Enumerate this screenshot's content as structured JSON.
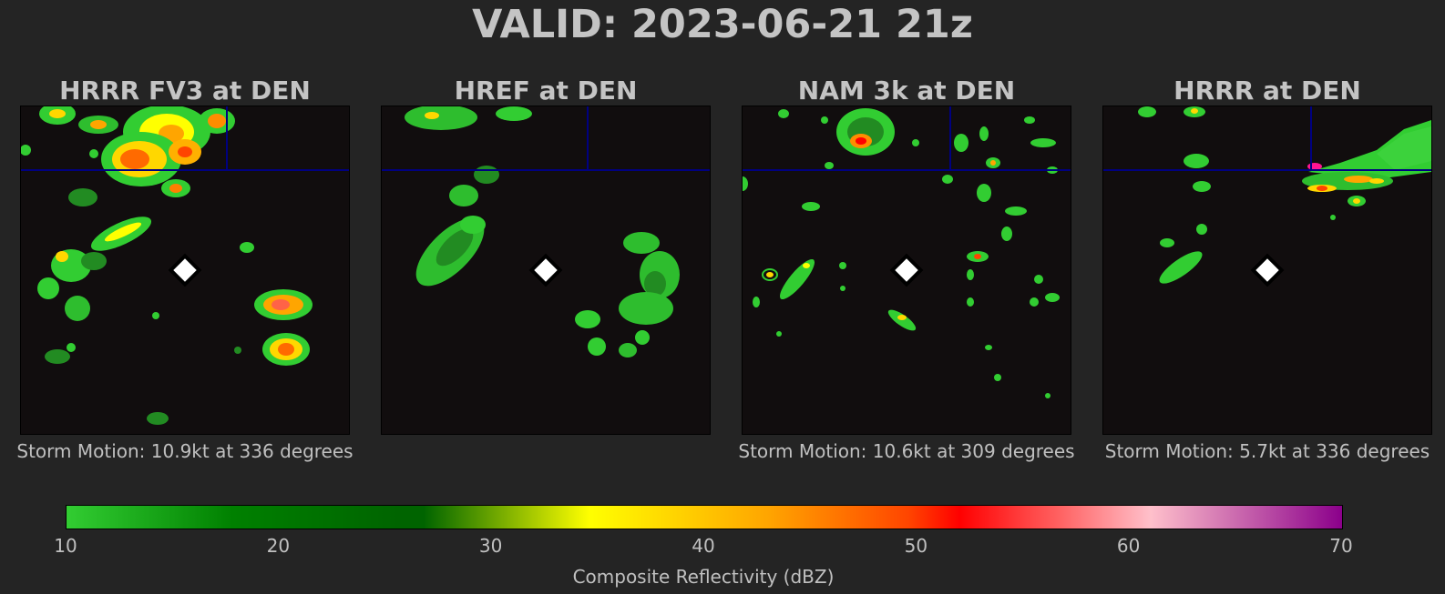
{
  "title": "VALID: 2023-06-21 21z",
  "panels": [
    {
      "title": "HRRR FV3 at DEN",
      "storm_motion": "Storm Motion: 10.9kt at 336 degrees"
    },
    {
      "title": "HREF at DEN",
      "storm_motion": ""
    },
    {
      "title": "NAM 3k at DEN",
      "storm_motion": "Storm Motion: 10.6kt at 309 degrees"
    },
    {
      "title": "HRRR at DEN",
      "storm_motion": "Storm Motion: 5.7kt at 336 degrees"
    }
  ],
  "colorbar": {
    "label": "Composite Reflectivity (dBZ)",
    "ticks": [
      "10",
      "20",
      "30",
      "40",
      "50",
      "60",
      "70"
    ],
    "range": [
      10,
      70
    ]
  },
  "colors": {
    "background": "#242424",
    "map_background": "#110d0e",
    "boundary_lines": "#000080",
    "station_marker": "#ffffff"
  },
  "chart_data": {
    "type": "heatmap",
    "title": "VALID: 2023-06-21 21z",
    "variable": "Composite Reflectivity (dBZ)",
    "value_range": [
      10,
      70
    ],
    "station": "DEN",
    "models": [
      "HRRR FV3",
      "HREF",
      "NAM 3k",
      "HRRR"
    ],
    "storm_motion_kt": [
      10.9,
      null,
      10.6,
      5.7
    ],
    "storm_motion_deg": [
      336,
      null,
      309,
      336
    ]
  }
}
